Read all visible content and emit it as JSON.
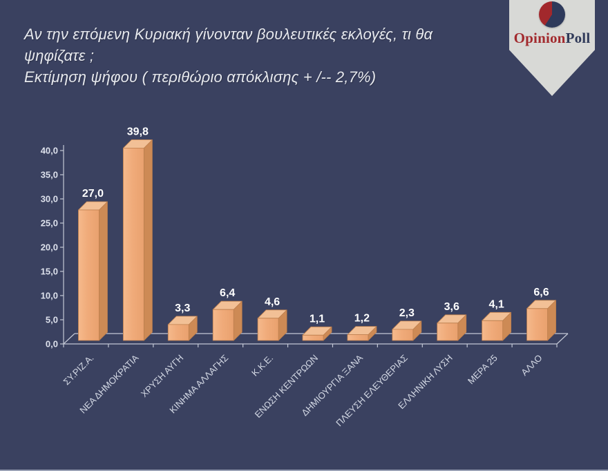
{
  "header": {
    "question_line1": "Αν την επόμενη Κυριακή γίνονταν βουλευτικές εκλογές, τι θα",
    "question_line2": "ψηφίζατε ;",
    "subtitle": "Εκτίμηση ψήφου ( περιθώριο απόκλισης + /-- 2,7%)"
  },
  "brand": {
    "name_part1": "Opinion",
    "name_part2": "Poll",
    "logo_colors": {
      "red": "#a2282c",
      "navy": "#2e3a5b",
      "banner": "#d8d9d6"
    }
  },
  "chart_data": {
    "type": "bar",
    "style": "3d-column",
    "title": "Εκτίμηση ψήφου",
    "xlabel": "",
    "ylabel": "",
    "categories": [
      "ΣΥ.ΡΙΖ.Α.",
      "ΝΕΑ ΔΗΜΟΚΡΑΤΙΑ",
      "ΧΡΥΣΗ ΑΥΓΗ",
      "ΚΙΝΗΜΑ ΑΛΛΑΓΗΣ",
      "Κ.Κ.Ε.",
      "ΕΝΩΣΗ ΚΕΝΤΡΩΩΝ",
      "ΔΗΜΙΟΥΡΓΙΑ ΞΑΝΑ",
      "ΠΛΕΥΣΗ ΕΛΕΥΘΕΡΙΑΣ",
      "ΕΛΛΗΝΙΚΗ ΛΥΣΗ",
      "ΜΕΡΑ 25",
      "ΑΛΛΟ"
    ],
    "values": [
      27.0,
      39.8,
      3.3,
      6.4,
      4.6,
      1.1,
      1.2,
      2.3,
      3.6,
      4.1,
      6.6
    ],
    "value_labels": [
      "27,0",
      "39,8",
      "3,3",
      "6,4",
      "4,6",
      "1,1",
      "1,2",
      "2,3",
      "3,6",
      "4,1",
      "6,6"
    ],
    "ylim": [
      0,
      40
    ],
    "y_tick_step": 5,
    "y_tick_labels": [
      "0,0",
      "5,0",
      "10,0",
      "15,0",
      "20,0",
      "25,0",
      "30,0",
      "35,0",
      "40,0"
    ],
    "grid": false,
    "legend": false,
    "colors": {
      "background": "#3a4160",
      "bar_front": "#f0ab7a",
      "bar_front_light": "#f5b98c",
      "bar_front_dark": "#e9a16e",
      "bar_top": "#f2c096",
      "bar_side": "#cd8a55",
      "bar_edge": "#bd7f4e",
      "axis": "#c3c8d6",
      "tick_label": "#dde1ec",
      "category_label": "#d3d8e4",
      "value_label": "#ffffff"
    }
  }
}
